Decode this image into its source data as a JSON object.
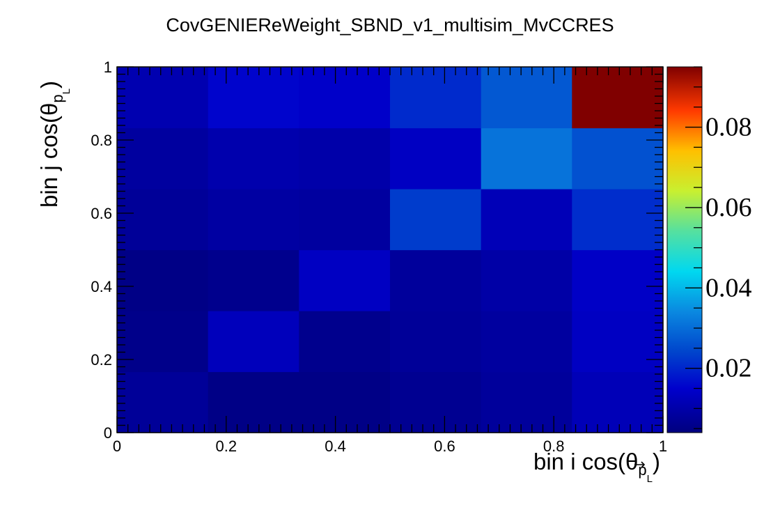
{
  "chart_data": {
    "type": "heatmap",
    "title": "CovGENIEReWeight_SBND_v1_multisim_MvCCRES",
    "xlabel": "bin i cos(θ",
    "xlabel_sub": "p",
    "xlabel_subsub": "L",
    "xlabel_close": ")",
    "ylabel": "bin j cos(θ",
    "ylabel_sub": "p",
    "ylabel_subsub": "L",
    "ylabel_close": ")",
    "xlim": [
      0,
      1
    ],
    "ylim": [
      0,
      1
    ],
    "x_edges": [
      0,
      0.1667,
      0.3333,
      0.5,
      0.6667,
      0.8333,
      1
    ],
    "y_edges": [
      0,
      0.1667,
      0.3333,
      0.5,
      0.6667,
      0.8333,
      1
    ],
    "x_tick_labels": [
      "0",
      "0.2",
      "0.4",
      "0.6",
      "0.8",
      "1"
    ],
    "y_tick_labels": [
      "0",
      "0.2",
      "0.4",
      "0.6",
      "0.8",
      "1"
    ],
    "tick_values": [
      0,
      0.2,
      0.4,
      0.6,
      0.8,
      1
    ],
    "z_range": [
      0.004,
      0.095
    ],
    "z_tick_values": [
      0.02,
      0.04,
      0.06,
      0.08
    ],
    "z_tick_labels": [
      "0.02",
      "0.04",
      "0.06",
      "0.08"
    ],
    "colormap": "rainbow",
    "grid": false,
    "values": [
      [
        0.0075,
        0.005,
        0.005,
        0.0065,
        0.008,
        0.012
      ],
      [
        0.0055,
        0.0125,
        0.006,
        0.0075,
        0.0085,
        0.0135
      ],
      [
        0.005,
        0.006,
        0.0135,
        0.008,
        0.0095,
        0.014
      ],
      [
        0.0075,
        0.009,
        0.0085,
        0.023,
        0.012,
        0.021
      ],
      [
        0.0085,
        0.0105,
        0.01,
        0.0135,
        0.031,
        0.026
      ],
      [
        0.011,
        0.0155,
        0.0145,
        0.0205,
        0.027,
        0.095
      ]
    ]
  }
}
